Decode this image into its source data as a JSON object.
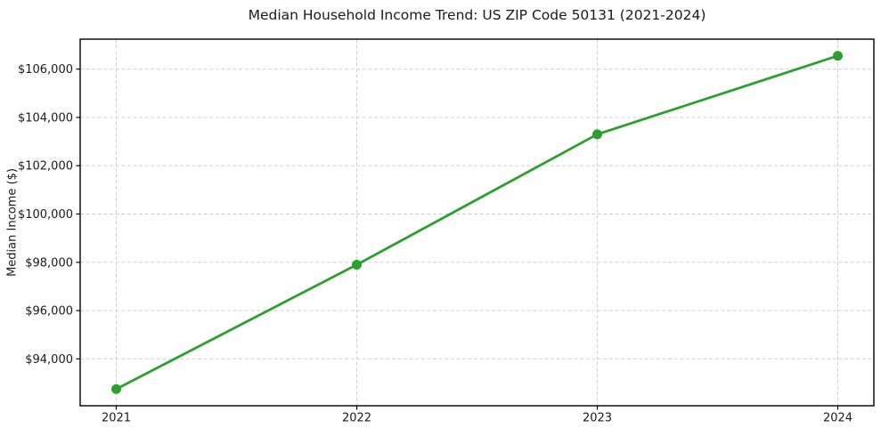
{
  "chart_data": {
    "type": "line",
    "title": "Median Household Income Trend: US ZIP Code 50131 (2021-2024)",
    "xlabel": "",
    "ylabel": "Median Income ($)",
    "categories": [
      "2021",
      "2022",
      "2023",
      "2024"
    ],
    "values": [
      92750,
      97900,
      103300,
      106550
    ],
    "y_ticks": [
      94000,
      96000,
      98000,
      100000,
      102000,
      104000,
      106000
    ],
    "y_tick_labels": [
      "$94,000",
      "$96,000",
      "$98,000",
      "$100,000",
      "$102,000",
      "$104,000",
      "$106,000"
    ],
    "ylim": [
      92060,
      107240
    ],
    "x_margin": 0.15,
    "grid": true,
    "grid_line_style": "dashed",
    "legend": "none",
    "line_color": "#2ca02c",
    "marker": "circle",
    "marker_color": "#2ca02c",
    "colors": {
      "grid": "#cccccc",
      "spine": "#000000",
      "text": "#1a1a1a",
      "background": "#ffffff"
    }
  }
}
